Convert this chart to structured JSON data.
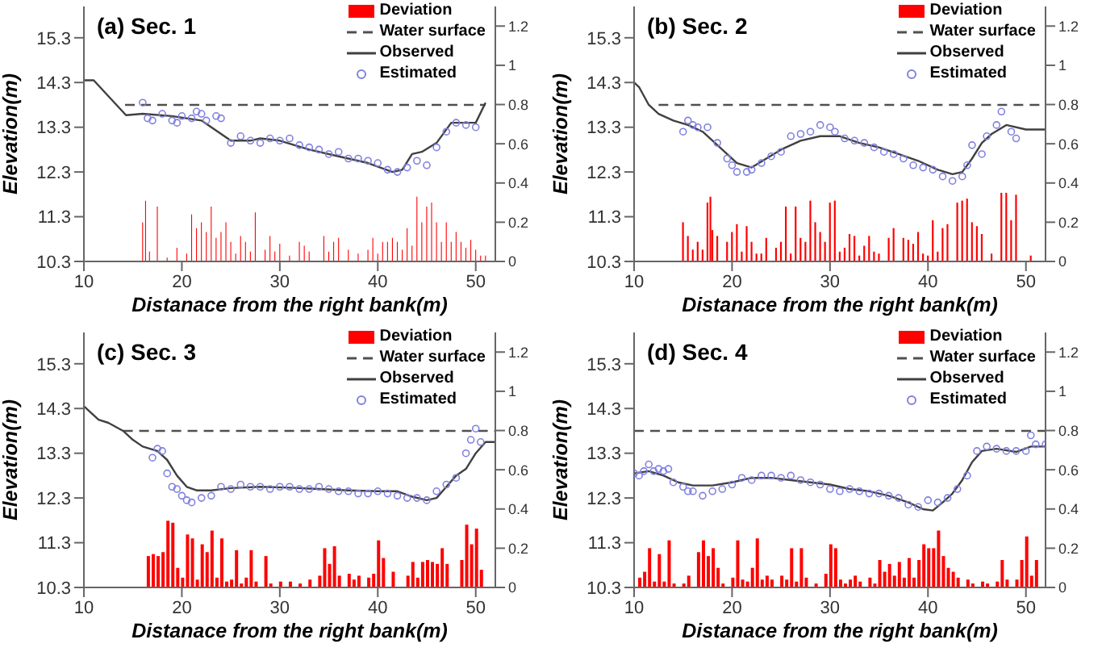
{
  "chart_data": [
    {
      "type": "line",
      "title": "(a) Sec. 1",
      "xlabel": "Distanace from the right bank(m)",
      "ylabel": "Elevation(m)",
      "xlim": [
        10,
        52
      ],
      "xticks": [
        10,
        20,
        30,
        40,
        50
      ],
      "ylim": [
        10.3,
        16
      ],
      "yticks": [
        10.3,
        11.3,
        12.3,
        13.3,
        14.3,
        15.3
      ],
      "y2lim": [
        0,
        1.3
      ],
      "y2ticks": [
        0,
        0.2,
        0.4,
        0.6,
        0.8,
        1,
        1.2
      ],
      "legend": "top right",
      "series": [
        {
          "name": "Deviation",
          "type": "bar",
          "axis": "y2",
          "color": "#ff0000",
          "x": [
            16,
            16.3,
            16.7,
            17.5,
            18.5,
            19.5,
            20.5,
            21,
            21.5,
            22,
            22.5,
            23,
            23.5,
            24,
            24.5,
            25,
            25.5,
            26,
            26.5,
            27,
            27.5,
            28.5,
            29,
            29.5,
            30,
            31,
            32,
            32.5,
            33,
            34.5,
            35,
            35.5,
            36,
            37,
            38,
            39,
            39.5,
            40,
            40.5,
            41,
            41.5,
            42,
            42.5,
            43,
            43.5,
            44,
            44.5,
            45,
            45.5,
            46,
            46.5,
            47,
            47.5,
            48,
            48.5,
            49,
            49.5,
            50,
            50.5,
            51
          ],
          "values": [
            0.2,
            0.31,
            0.05,
            0.28,
            0.02,
            0.07,
            0.04,
            0.24,
            0.17,
            0.2,
            0.15,
            0.28,
            0.12,
            0.15,
            0.2,
            0.1,
            0.04,
            0.13,
            0.1,
            0.05,
            0.25,
            0.06,
            0.13,
            0.05,
            0.09,
            0.03,
            0.1,
            0.08,
            0.05,
            0.13,
            0.05,
            0.1,
            0.12,
            0.06,
            0.04,
            0.06,
            0.12,
            0.04,
            0.1,
            0.1,
            0.12,
            0.1,
            0.06,
            0.17,
            0.08,
            0.33,
            0.2,
            0.28,
            0.3,
            0.2,
            0.1,
            0.2,
            0.1,
            0.15,
            0.1,
            0.07,
            0.11,
            0.06,
            0.03,
            0.03
          ]
        },
        {
          "name": "Water surface",
          "line_style": "dashed",
          "color": "#505050",
          "x": [
            14.2,
            51
          ],
          "values": [
            13.8,
            13.8
          ]
        },
        {
          "name": "Observed",
          "line_style": "solid",
          "color": "#404040",
          "x": [
            10,
            11,
            14.3,
            16,
            19,
            22,
            25,
            27,
            28,
            30,
            33,
            36,
            39,
            41.5,
            42.5,
            43.5,
            44.5,
            46,
            47.5,
            49,
            50,
            51
          ],
          "values": [
            14.35,
            14.35,
            13.57,
            13.6,
            13.55,
            13.45,
            13,
            13,
            13.05,
            13,
            12.8,
            12.65,
            12.5,
            12.3,
            12.35,
            12.7,
            12.75,
            12.95,
            13.4,
            13.4,
            13.4,
            13.85
          ]
        },
        {
          "name": "Estimated",
          "type": "scatter",
          "color": "#8080e0",
          "x": [
            16,
            16.5,
            17,
            18,
            19,
            19.5,
            20,
            21,
            21.5,
            22,
            22.5,
            23.5,
            24,
            25,
            26,
            27,
            28,
            29,
            30,
            31,
            32,
            33,
            34,
            35,
            36,
            37,
            38,
            39,
            40,
            41,
            42,
            43,
            44,
            45,
            46,
            47,
            48,
            49,
            50
          ],
          "values": [
            13.85,
            13.5,
            13.45,
            13.6,
            13.45,
            13.4,
            13.55,
            13.5,
            13.65,
            13.6,
            13.45,
            13.55,
            13.5,
            12.95,
            13.1,
            13,
            12.95,
            13.05,
            13,
            13.05,
            12.9,
            12.85,
            12.8,
            12.7,
            12.75,
            12.6,
            12.6,
            12.55,
            12.5,
            12.35,
            12.3,
            12.4,
            12.55,
            12.45,
            12.85,
            13.2,
            13.4,
            13.35,
            13.3
          ]
        }
      ]
    },
    {
      "type": "line",
      "title": "(b) Sec. 2",
      "xlabel": "Distanace from the right bank(m)",
      "ylabel": "Elevation(m)",
      "xlim": [
        10,
        52
      ],
      "xticks": [
        10,
        20,
        30,
        40,
        50
      ],
      "ylim": [
        10.3,
        16
      ],
      "yticks": [
        10.3,
        11.3,
        12.3,
        13.3,
        14.3,
        15.3
      ],
      "y2lim": [
        0,
        1.3
      ],
      "y2ticks": [
        0,
        0.2,
        0.4,
        0.6,
        0.8,
        1,
        1.2
      ],
      "legend": "top right",
      "series": [
        {
          "name": "Deviation",
          "type": "bar",
          "axis": "y2",
          "color": "#ff0000",
          "x": [
            15,
            15.5,
            16,
            16.5,
            17,
            17.5,
            17.8,
            18,
            18.5,
            19.5,
            20,
            20.5,
            21,
            21.5,
            22,
            22.5,
            23,
            23.5,
            24.5,
            25,
            25.5,
            26,
            26.5,
            27,
            27.5,
            28,
            28.5,
            29,
            29.5,
            30,
            30.5,
            31,
            31.5,
            32,
            32.5,
            33,
            33.5,
            34,
            34.5,
            35,
            36,
            36.5,
            37.5,
            38,
            38.5,
            39,
            39.5,
            40,
            40.5,
            41,
            41.5,
            42,
            43,
            43.5,
            44,
            44.5,
            45,
            45.5,
            46.5,
            47.5,
            48,
            48.5,
            49,
            50.5
          ],
          "values": [
            0.2,
            0.13,
            0.06,
            0.1,
            0.06,
            0.3,
            0.33,
            0.16,
            0.13,
            0.1,
            0.15,
            0.19,
            0.05,
            0.18,
            0.1,
            0.04,
            0.04,
            0.12,
            0.07,
            0.1,
            0.28,
            0.04,
            0.28,
            0.12,
            0.1,
            0.31,
            0.2,
            0.15,
            0.1,
            0.3,
            0.31,
            0.05,
            0.07,
            0.14,
            0.13,
            0.03,
            0.08,
            0.13,
            0.05,
            0.04,
            0.12,
            0.17,
            0.12,
            0.11,
            0.09,
            0.15,
            0.04,
            0.03,
            0.21,
            0.05,
            0.17,
            0.19,
            0.3,
            0.31,
            0.32,
            0.2,
            0.18,
            0.14,
            0.04,
            0.35,
            0.35,
            0.21,
            0.34,
            0.03
          ]
        },
        {
          "name": "Water surface",
          "line_style": "dashed",
          "color": "#505050",
          "x": [
            12.5,
            52
          ],
          "values": [
            13.8,
            13.8
          ]
        },
        {
          "name": "Observed",
          "line_style": "solid",
          "color": "#404040",
          "x": [
            10,
            10.5,
            11.5,
            12.5,
            14,
            15.5,
            17,
            19,
            20.5,
            22,
            23.5,
            25,
            27,
            29,
            31,
            33,
            35,
            37,
            39,
            41,
            42.5,
            43.5,
            44.5,
            45.5,
            46.5,
            48,
            50,
            52
          ],
          "values": [
            14.3,
            14.2,
            13.8,
            13.6,
            13.45,
            13.35,
            13.2,
            12.8,
            12.5,
            12.4,
            12.6,
            12.8,
            13,
            13.1,
            13.1,
            12.95,
            12.85,
            12.7,
            12.55,
            12.35,
            12.25,
            12.3,
            12.6,
            12.95,
            13.15,
            13.35,
            13.25,
            13.25
          ]
        },
        {
          "name": "Estimated",
          "type": "scatter",
          "color": "#8080e0",
          "x": [
            15,
            15.5,
            16,
            16.5,
            17.5,
            18.5,
            19.5,
            20,
            20.5,
            21.5,
            22,
            23,
            24,
            25,
            26,
            27,
            28,
            29,
            30,
            30.5,
            31.5,
            32.5,
            33.5,
            34.5,
            35.5,
            36.5,
            37.5,
            38.5,
            39.5,
            40.5,
            41.5,
            42.5,
            43.5,
            44,
            44.5,
            45.5,
            46,
            47,
            47.5,
            48.5,
            49
          ],
          "values": [
            13.2,
            13.45,
            13.35,
            13.3,
            13.3,
            12.95,
            12.6,
            12.45,
            12.3,
            12.3,
            12.35,
            12.5,
            12.65,
            12.75,
            13.1,
            13.15,
            13.2,
            13.35,
            13.3,
            13.2,
            13.05,
            13,
            12.95,
            12.85,
            12.75,
            12.7,
            12.6,
            12.45,
            12.4,
            12.35,
            12.2,
            12.1,
            12.2,
            12.45,
            12.9,
            12.7,
            13.1,
            13.35,
            13.65,
            13.2,
            13.05
          ]
        }
      ]
    },
    {
      "type": "line",
      "title": "(c) Sec. 3",
      "xlabel": "Distanace from the right bank(m)",
      "ylabel": "Elevation(m)",
      "xlim": [
        10,
        52
      ],
      "xticks": [
        10,
        20,
        30,
        40,
        50
      ],
      "ylim": [
        10.3,
        16
      ],
      "yticks": [
        10.3,
        11.3,
        12.3,
        13.3,
        14.3,
        15.3
      ],
      "y2lim": [
        0,
        1.3
      ],
      "y2ticks": [
        0,
        0.2,
        0.4,
        0.6,
        0.8,
        1,
        1.2
      ],
      "legend": "top right",
      "series": [
        {
          "name": "Deviation",
          "type": "bar",
          "axis": "y2",
          "color": "#ff0000",
          "x": [
            16.5,
            17,
            17.5,
            18,
            18.5,
            19,
            19.5,
            20,
            20.5,
            21,
            21.5,
            22,
            22.5,
            23,
            23.5,
            24,
            24.5,
            25,
            25.5,
            26,
            26.5,
            27,
            27.5,
            28.5,
            29,
            30,
            31,
            32,
            33,
            34,
            34.5,
            35,
            35.5,
            36,
            37,
            37.5,
            38,
            39,
            39.5,
            40,
            40.5,
            41.5,
            43,
            43.5,
            44,
            44.5,
            45,
            45.5,
            46,
            46.5,
            47,
            48.5,
            49,
            49.5,
            50,
            50.5
          ],
          "values": [
            0.16,
            0.17,
            0.16,
            0.18,
            0.34,
            0.33,
            0.1,
            0.05,
            0.27,
            0.25,
            0.04,
            0.22,
            0.18,
            0.29,
            0.05,
            0.25,
            0.03,
            0.04,
            0.19,
            0.02,
            0.05,
            0.19,
            0.03,
            0.16,
            0.02,
            0.03,
            0.03,
            0.02,
            0.04,
            0.06,
            0.2,
            0.12,
            0.21,
            0.06,
            0.07,
            0.04,
            0.06,
            0.05,
            0.07,
            0.24,
            0.15,
            0.08,
            0.06,
            0.13,
            0.05,
            0.13,
            0.14,
            0.13,
            0.12,
            0.2,
            0.12,
            0.14,
            0.32,
            0.22,
            0.3,
            0.09
          ]
        },
        {
          "name": "Water surface",
          "line_style": "dashed",
          "color": "#505050",
          "x": [
            14,
            52
          ],
          "values": [
            13.8,
            13.8
          ]
        },
        {
          "name": "Observed",
          "line_style": "solid",
          "color": "#404040",
          "x": [
            10,
            11.5,
            12.5,
            14,
            15,
            16,
            17.5,
            18.5,
            19.5,
            20.5,
            21.5,
            23,
            25,
            28,
            31,
            34,
            37,
            40,
            42,
            43.5,
            45,
            46,
            47,
            48,
            49,
            50,
            51,
            52
          ],
          "values": [
            14.35,
            14.05,
            13.98,
            13.8,
            13.6,
            13.45,
            13.35,
            13.15,
            12.8,
            12.55,
            12.47,
            12.47,
            12.52,
            12.55,
            12.53,
            12.5,
            12.47,
            12.45,
            12.45,
            12.33,
            12.25,
            12.3,
            12.55,
            12.8,
            12.95,
            13.3,
            13.55,
            13.55
          ]
        },
        {
          "name": "Estimated",
          "type": "scatter",
          "color": "#8080e0",
          "x": [
            17,
            17.5,
            18,
            18.5,
            19,
            19.5,
            20,
            20.5,
            21,
            22,
            23,
            24,
            25,
            26,
            27,
            28,
            29,
            30,
            31,
            32,
            33,
            34,
            35,
            36,
            37,
            38,
            39,
            40,
            41,
            42,
            43,
            44,
            45,
            46,
            47,
            48,
            49,
            49.5,
            50,
            50.5
          ],
          "values": [
            13.2,
            13.4,
            13.35,
            12.85,
            12.55,
            12.5,
            12.35,
            12.25,
            12.2,
            12.3,
            12.35,
            12.55,
            12.5,
            12.6,
            12.55,
            12.55,
            12.5,
            12.55,
            12.55,
            12.5,
            12.5,
            12.55,
            12.5,
            12.45,
            12.45,
            12.4,
            12.4,
            12.45,
            12.4,
            12.35,
            12.3,
            12.3,
            12.25,
            12.45,
            12.6,
            12.75,
            13.3,
            13.6,
            13.85,
            13.55
          ]
        }
      ]
    },
    {
      "type": "line",
      "title": "(d) Sec. 4",
      "xlabel": "Distanace from the right bank(m)",
      "ylabel": "Elevation(m)",
      "xlim": [
        10,
        52
      ],
      "xticks": [
        10,
        20,
        30,
        40,
        50
      ],
      "ylim": [
        10.3,
        16
      ],
      "yticks": [
        10.3,
        11.3,
        12.3,
        13.3,
        14.3,
        15.3
      ],
      "y2lim": [
        0,
        1.3
      ],
      "y2ticks": [
        0,
        0.2,
        0.4,
        0.6,
        0.8,
        1,
        1.2
      ],
      "legend": "top right",
      "series": [
        {
          "name": "Deviation",
          "type": "bar",
          "axis": "y2",
          "color": "#ff0000",
          "x": [
            10.5,
            11,
            11.5,
            12,
            12.5,
            13,
            13.5,
            14,
            15,
            15.5,
            16.5,
            17,
            17.5,
            18,
            18.5,
            19,
            20,
            20.5,
            21,
            21.5,
            22,
            22.5,
            23,
            23.5,
            24,
            25,
            25.5,
            26,
            26.5,
            27,
            27.5,
            28.5,
            29.5,
            30,
            30.5,
            31,
            31.5,
            32,
            32.5,
            33,
            34,
            34.5,
            35,
            35.5,
            36,
            36.5,
            37,
            37.5,
            38,
            38.5,
            39,
            39.5,
            40,
            40.5,
            41,
            41.5,
            42,
            42.5,
            43,
            44,
            44.5,
            45.5,
            46,
            47,
            47.5,
            48,
            49,
            49.5,
            50,
            50.5,
            51
          ],
          "values": [
            0.05,
            0.08,
            0.2,
            0.03,
            0.17,
            0.03,
            0.24,
            0.02,
            0.02,
            0.06,
            0.18,
            0.24,
            0.16,
            0.2,
            0.1,
            0.02,
            0.05,
            0.24,
            0.04,
            0.03,
            0.1,
            0.25,
            0.04,
            0.06,
            0.04,
            0.06,
            0.04,
            0.2,
            0.03,
            0.2,
            0.05,
            0.02,
            0.07,
            0.22,
            0.2,
            0.04,
            0.02,
            0.04,
            0.06,
            0.03,
            0.05,
            0.02,
            0.14,
            0.08,
            0.12,
            0.06,
            0.13,
            0.05,
            0.15,
            0.05,
            0.14,
            0.22,
            0.2,
            0.2,
            0.29,
            0.16,
            0.1,
            0.08,
            0.05,
            0.04,
            0.02,
            0.03,
            0.02,
            0.03,
            0.14,
            0.04,
            0.04,
            0.14,
            0.26,
            0.06,
            0.14
          ]
        },
        {
          "name": "Water surface",
          "line_style": "dashed",
          "color": "#505050",
          "x": [
            10,
            52
          ],
          "values": [
            13.8,
            13.8
          ]
        },
        {
          "name": "Observed",
          "line_style": "solid",
          "color": "#404040",
          "x": [
            10,
            11.5,
            13,
            14.5,
            16,
            18,
            20,
            22,
            24,
            26,
            28,
            30,
            32,
            34,
            36,
            38,
            39.5,
            40.5,
            41.5,
            42.5,
            43.5,
            44.5,
            45.5,
            47,
            49,
            50.5,
            52
          ],
          "values": [
            12.85,
            12.9,
            12.8,
            12.65,
            12.58,
            12.58,
            12.65,
            12.75,
            12.75,
            12.7,
            12.65,
            12.6,
            12.5,
            12.45,
            12.35,
            12.2,
            12.05,
            12.02,
            12.2,
            12.4,
            12.7,
            13.1,
            13.35,
            13.4,
            13.33,
            13.45,
            13.45
          ]
        },
        {
          "name": "Estimated",
          "type": "scatter",
          "color": "#8080e0",
          "x": [
            10,
            10.5,
            11,
            11.5,
            12,
            12.5,
            13,
            13.5,
            14,
            15,
            15.5,
            16,
            17,
            18,
            19,
            20,
            21,
            22,
            23,
            24,
            25,
            26,
            27,
            28,
            29,
            30,
            31,
            32,
            33,
            34,
            35,
            36,
            37,
            38,
            39,
            40,
            41,
            42,
            43,
            44,
            45,
            46,
            47,
            48,
            49,
            50,
            50.5,
            51,
            52
          ],
          "values": [
            12.85,
            12.8,
            12.9,
            13.05,
            12.9,
            12.95,
            12.9,
            12.95,
            12.65,
            12.55,
            12.45,
            12.45,
            12.35,
            12.45,
            12.5,
            12.6,
            12.75,
            12.7,
            12.8,
            12.8,
            12.75,
            12.8,
            12.7,
            12.65,
            12.6,
            12.5,
            12.45,
            12.5,
            12.45,
            12.4,
            12.4,
            12.35,
            12.3,
            12.15,
            12.1,
            12.25,
            12.2,
            12.3,
            12.5,
            12.8,
            13.35,
            13.45,
            13.4,
            13.35,
            13.35,
            13.35,
            13.7,
            13.5,
            13.5
          ]
        }
      ]
    }
  ]
}
